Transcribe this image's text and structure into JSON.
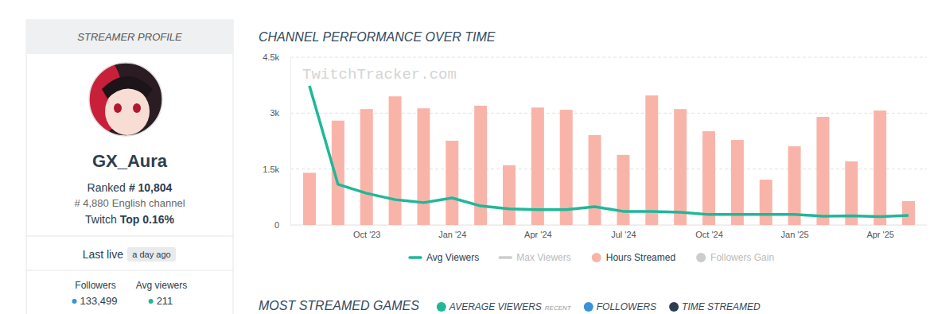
{
  "profile": {
    "header": "STREAMER PROFILE",
    "name": "GX_Aura",
    "rank_label": "Ranked",
    "rank": "# 10,804",
    "language_rank": "# 4,880",
    "language_label": "English channel",
    "top_label": "Twitch",
    "top_value": "Top 0.16%",
    "last_live_label": "Last live",
    "last_live": "a day ago",
    "stats": [
      {
        "label": "Followers",
        "value": "133,499",
        "color": "#3a92d8"
      },
      {
        "label": "Avg viewers",
        "value": "211",
        "color": "#1fb898"
      }
    ]
  },
  "chart_data": {
    "type": "bar",
    "title": "CHANNEL PERFORMANCE OVER TIME",
    "annotations": [
      "TwitchTracker.com"
    ],
    "categories": [
      null,
      null,
      "Oct '23",
      null,
      null,
      "Jan '24",
      null,
      null,
      "Apr '24",
      null,
      null,
      "Jul '24",
      null,
      null,
      "Oct '24",
      null,
      null,
      "Jan '25",
      null,
      null,
      "Apr '25",
      null
    ],
    "series": [
      {
        "name": "Avg Viewers",
        "type": "line",
        "color": "#1fb898",
        "values": [
          3730,
          1090,
          850,
          680,
          600,
          725,
          510,
          430,
          410,
          410,
          490,
          365,
          365,
          340,
          280,
          280,
          285,
          285,
          235,
          245,
          225,
          255
        ]
      },
      {
        "name": "Max Viewers",
        "type": "line",
        "color": "#cccccc",
        "values": [
          null,
          null,
          null,
          null,
          null,
          null,
          null,
          null,
          null,
          null,
          null,
          null,
          null,
          null,
          null,
          null,
          null,
          null,
          null,
          null,
          null,
          null
        ]
      },
      {
        "name": "Hours Streamed",
        "type": "bar",
        "color": "#f9b4aa",
        "values": [
          1400,
          2800,
          3110,
          3450,
          3130,
          2260,
          3200,
          1600,
          3150,
          3090,
          2410,
          1880,
          3475,
          3110,
          2515,
          2280,
          1215,
          2110,
          2900,
          1705,
          3070,
          640
        ]
      },
      {
        "name": "Followers Gain",
        "type": "bar",
        "color": "#cccccc",
        "values": [
          null,
          null,
          null,
          null,
          null,
          null,
          null,
          null,
          null,
          null,
          null,
          null,
          null,
          null,
          null,
          null,
          null,
          null,
          null,
          null,
          null,
          null
        ]
      }
    ],
    "ylim": [
      0,
      4500
    ],
    "yticks": [
      0,
      {
        "value": 1500,
        "label": "1.5k"
      },
      {
        "value": 3000,
        "label": "3k"
      },
      {
        "value": 4500,
        "label": "4.5k"
      }
    ],
    "grid": true,
    "legend": "bottom"
  },
  "games_section": {
    "title": "MOST STREAMED GAMES",
    "items": [
      {
        "label": "AVERAGE VIEWERS",
        "note": "RECENT",
        "color": "#1fb898"
      },
      {
        "label": "FOLLOWERS",
        "color": "#3a92d8"
      },
      {
        "label": "TIME STREAMED",
        "color": "#2c3e50"
      }
    ]
  }
}
